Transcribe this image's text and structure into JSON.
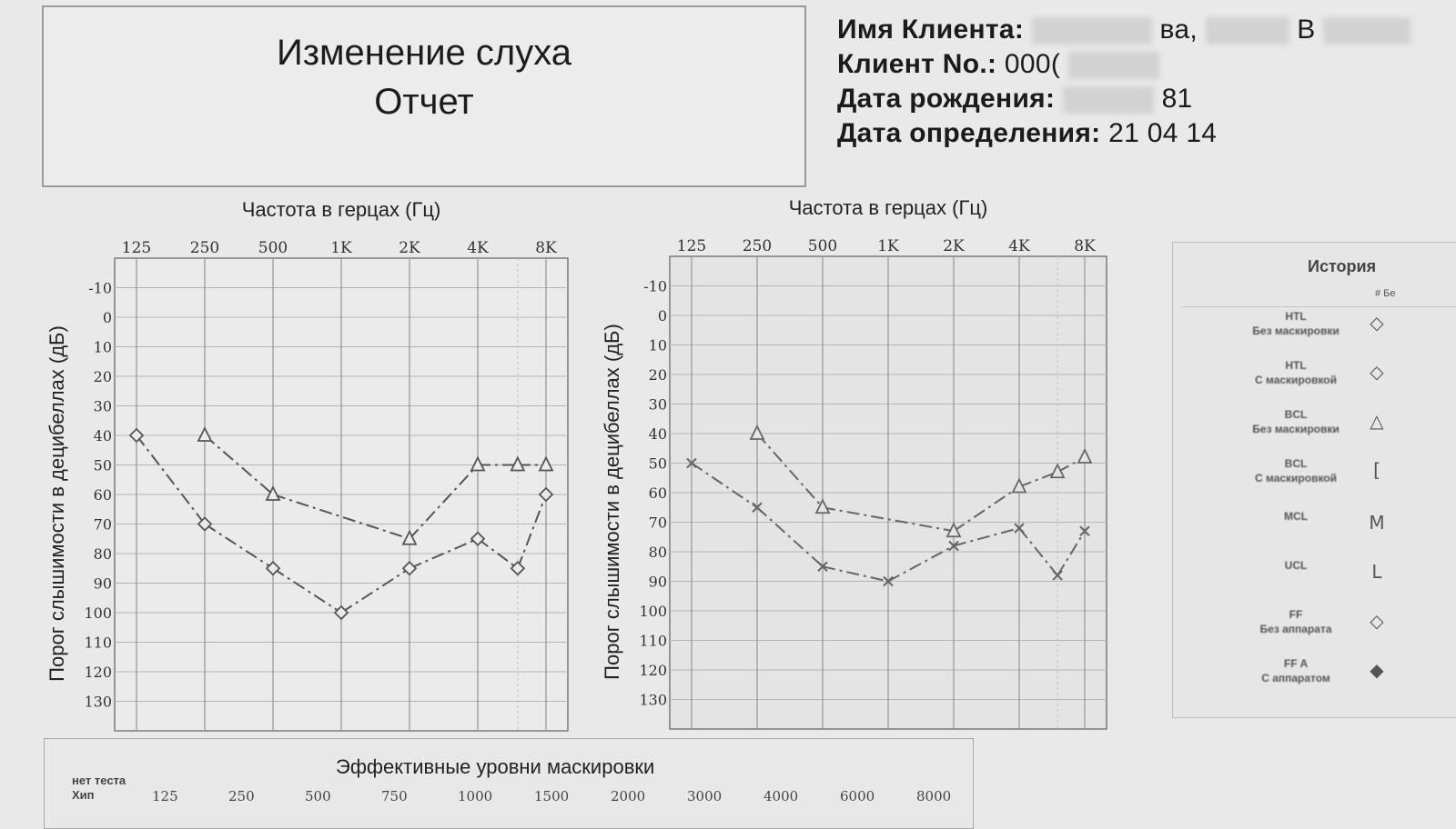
{
  "header": {
    "title_line1": "Изменение слуха",
    "title_line2": "Отчет"
  },
  "client": {
    "name_label": "Имя Клиента:",
    "name_fragment1": "ва,",
    "name_fragment2": "В",
    "number_label": "Клиент No.:",
    "number_value": "000(",
    "birth_label": "Дата рождения:",
    "birth_value": "81",
    "test_date_label": "Дата определения:",
    "test_date_value": "21 04 14"
  },
  "legend": {
    "title": "История",
    "subtitle": "# Бе",
    "items": [
      {
        "line1": "HTL",
        "line2": "Без маскировки",
        "symbol": "◇",
        "icon": "diamond-icon"
      },
      {
        "line1": "HTL",
        "line2": "С маскировкой",
        "symbol": "◇",
        "icon": "diamond-icon"
      },
      {
        "line1": "BCL",
        "line2": "Без маскировки",
        "symbol": "△",
        "icon": "triangle-icon"
      },
      {
        "line1": "BCL",
        "line2": "С маскировкой",
        "symbol": "[",
        "icon": "bracket-icon"
      },
      {
        "line1": "MCL",
        "line2": "",
        "symbol": "M",
        "icon": "m-letter-icon"
      },
      {
        "line1": "UCL",
        "line2": "",
        "symbol": "L",
        "icon": "l-letter-icon"
      },
      {
        "line1": "FF",
        "line2": "Без аппарата",
        "symbol": "◇",
        "icon": "diamond-icon"
      },
      {
        "line1": "FF A",
        "line2": "С аппаратом",
        "symbol": "◆",
        "icon": "filled-diamond-icon"
      }
    ]
  },
  "masking": {
    "title": "Эффективные уровни маскировки",
    "no_test_line1": "нет теста",
    "no_test_line2": "Хип",
    "frequencies": [
      "125",
      "250",
      "500",
      "750",
      "1000",
      "1500",
      "2000",
      "3000",
      "4000",
      "6000",
      "8000"
    ]
  },
  "chart_data": [
    {
      "type": "line",
      "xlabel": "Частота в герцах (Гц)",
      "ylabel": "Порог слышимости в децибеллах (дБ)",
      "x_ticks": [
        "125",
        "250",
        "500",
        "1K",
        "2K",
        "4K",
        "8K"
      ],
      "y_ticks": [
        -10,
        0,
        10,
        20,
        30,
        40,
        50,
        60,
        70,
        80,
        90,
        100,
        110,
        120,
        130
      ],
      "ylim": [
        -20,
        140
      ],
      "y_inverted": true,
      "grid": true,
      "series": [
        {
          "marker": "diamond",
          "color": "#555555",
          "points": [
            [
              125,
              40
            ],
            [
              250,
              70
            ],
            [
              500,
              85
            ],
            [
              1000,
              100
            ],
            [
              2000,
              85
            ],
            [
              4000,
              75
            ],
            [
              6000,
              85
            ],
            [
              8000,
              60
            ]
          ]
        },
        {
          "marker": "triangle",
          "color": "#555555",
          "points": [
            [
              250,
              40
            ],
            [
              500,
              60
            ],
            [
              2000,
              75
            ],
            [
              4000,
              50
            ],
            [
              6000,
              50
            ],
            [
              8000,
              50
            ]
          ]
        }
      ]
    },
    {
      "type": "line",
      "xlabel": "Частота в герцах (Гц)",
      "ylabel": "Порог слышимости в децибеллах (дБ)",
      "x_ticks": [
        "125",
        "250",
        "500",
        "1K",
        "2K",
        "4K",
        "8K"
      ],
      "y_ticks": [
        -10,
        0,
        10,
        20,
        30,
        40,
        50,
        60,
        70,
        80,
        90,
        100,
        110,
        120,
        130
      ],
      "ylim": [
        -20,
        140
      ],
      "y_inverted": true,
      "grid": true,
      "series": [
        {
          "marker": "x",
          "color": "#666666",
          "points": [
            [
              125,
              50
            ],
            [
              250,
              65
            ],
            [
              500,
              85
            ],
            [
              1000,
              90
            ],
            [
              2000,
              78
            ],
            [
              4000,
              72
            ],
            [
              6000,
              88
            ],
            [
              8000,
              73
            ]
          ]
        },
        {
          "marker": "triangle",
          "color": "#666666",
          "points": [
            [
              250,
              40
            ],
            [
              500,
              65
            ],
            [
              2000,
              73
            ],
            [
              4000,
              58
            ],
            [
              6000,
              53
            ],
            [
              8000,
              48
            ]
          ]
        }
      ]
    }
  ]
}
